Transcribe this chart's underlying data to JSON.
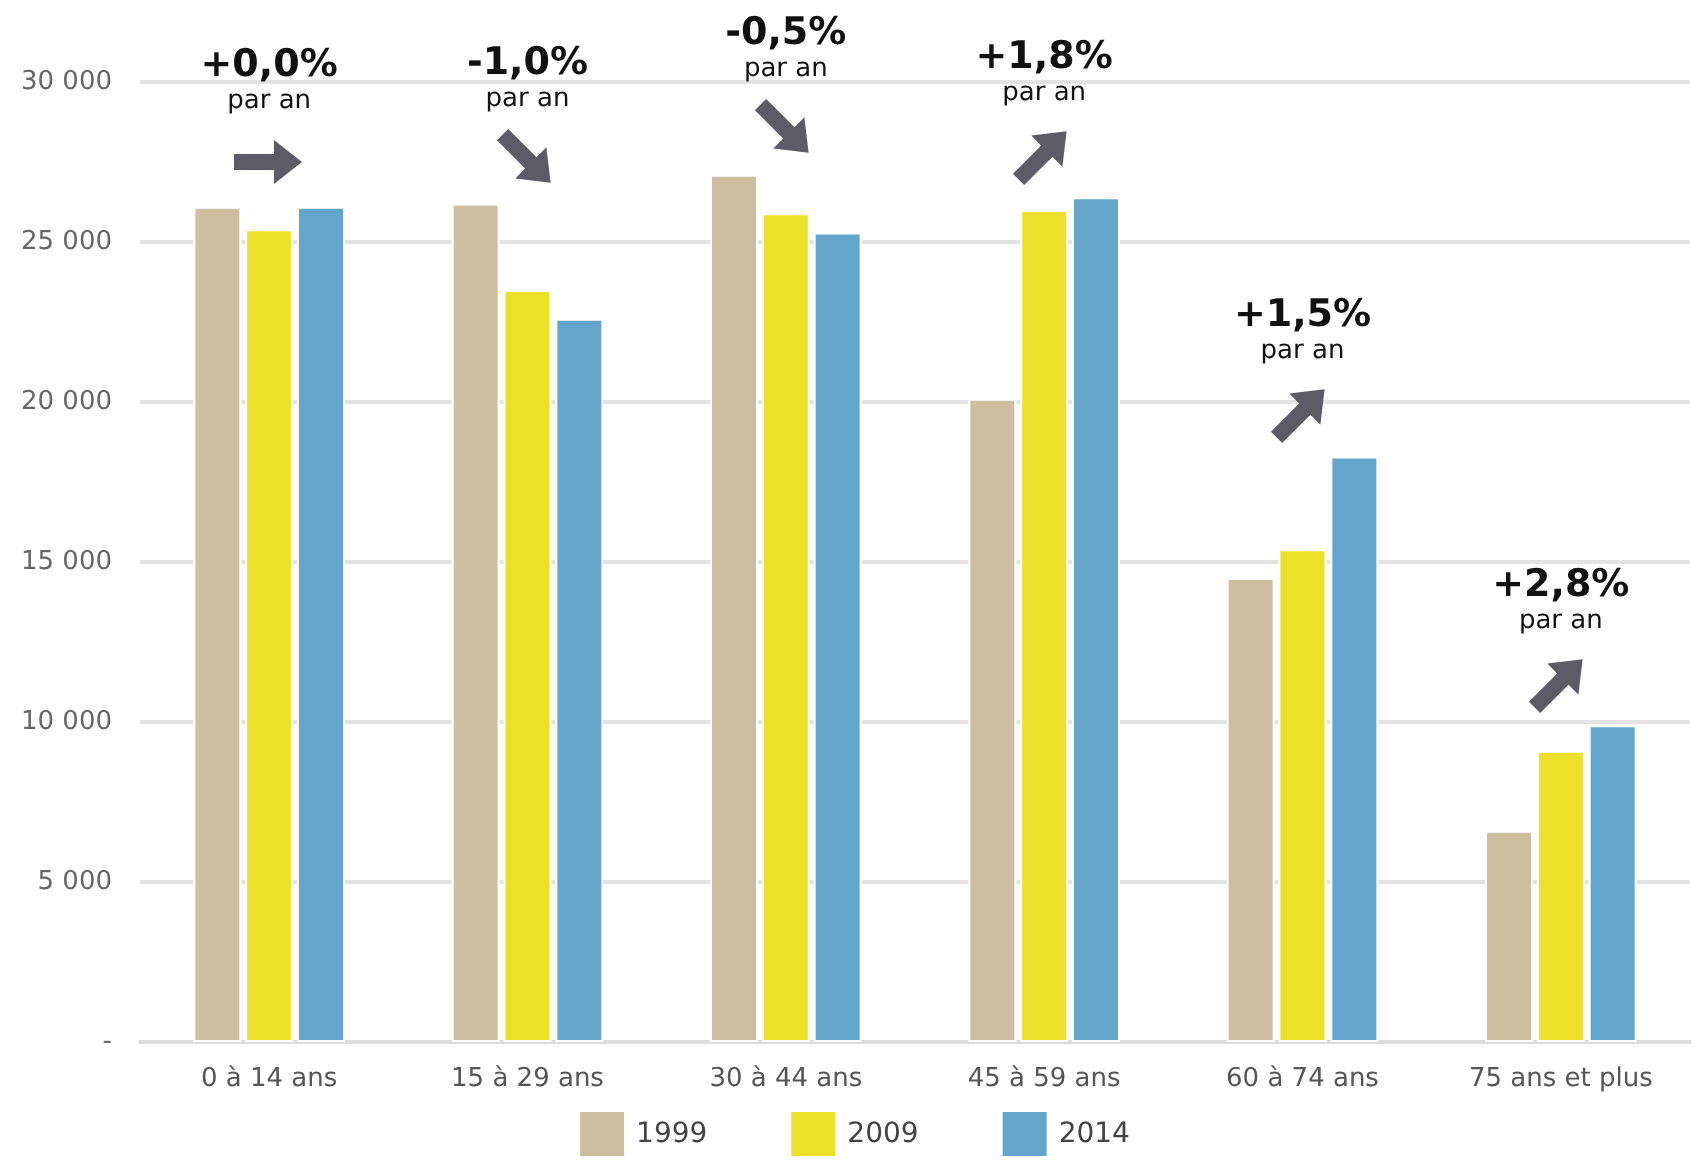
{
  "chart_data": {
    "type": "bar",
    "categories": [
      "0 à 14 ans",
      "15 à 29 ans",
      "30 à 44 ans",
      "45 à 59 ans",
      "60 à 74 ans",
      "75 ans et plus"
    ],
    "series": [
      {
        "name": "1999",
        "color": "#cdbea0",
        "values": [
          26100,
          26200,
          27100,
          20100,
          14500,
          6600
        ]
      },
      {
        "name": "2009",
        "color": "#ede028",
        "values": [
          25400,
          23500,
          25900,
          26000,
          15400,
          9100
        ]
      },
      {
        "name": "2014",
        "color": "#64a6cb",
        "values": [
          26100,
          22600,
          25300,
          26400,
          18300,
          9900
        ]
      }
    ],
    "ylim": [
      0,
      30000
    ],
    "yticks": [
      {
        "value": 0,
        "label": "-"
      },
      {
        "value": 5000,
        "label": "5 000"
      },
      {
        "value": 10000,
        "label": "10 000"
      },
      {
        "value": 15000,
        "label": "15 000"
      },
      {
        "value": 20000,
        "label": "20 000"
      },
      {
        "value": 25000,
        "label": "25 000"
      },
      {
        "value": 30000,
        "label": "30 000"
      }
    ],
    "grid": "y",
    "legend": "bottom",
    "annotations": [
      "+0,0%\npar an",
      "-1,0%\npar an",
      "-0,5%\npar an",
      "+1,8%\npar an",
      "+1,5%\npar an",
      "+2,8%\npar an"
    ]
  }
}
